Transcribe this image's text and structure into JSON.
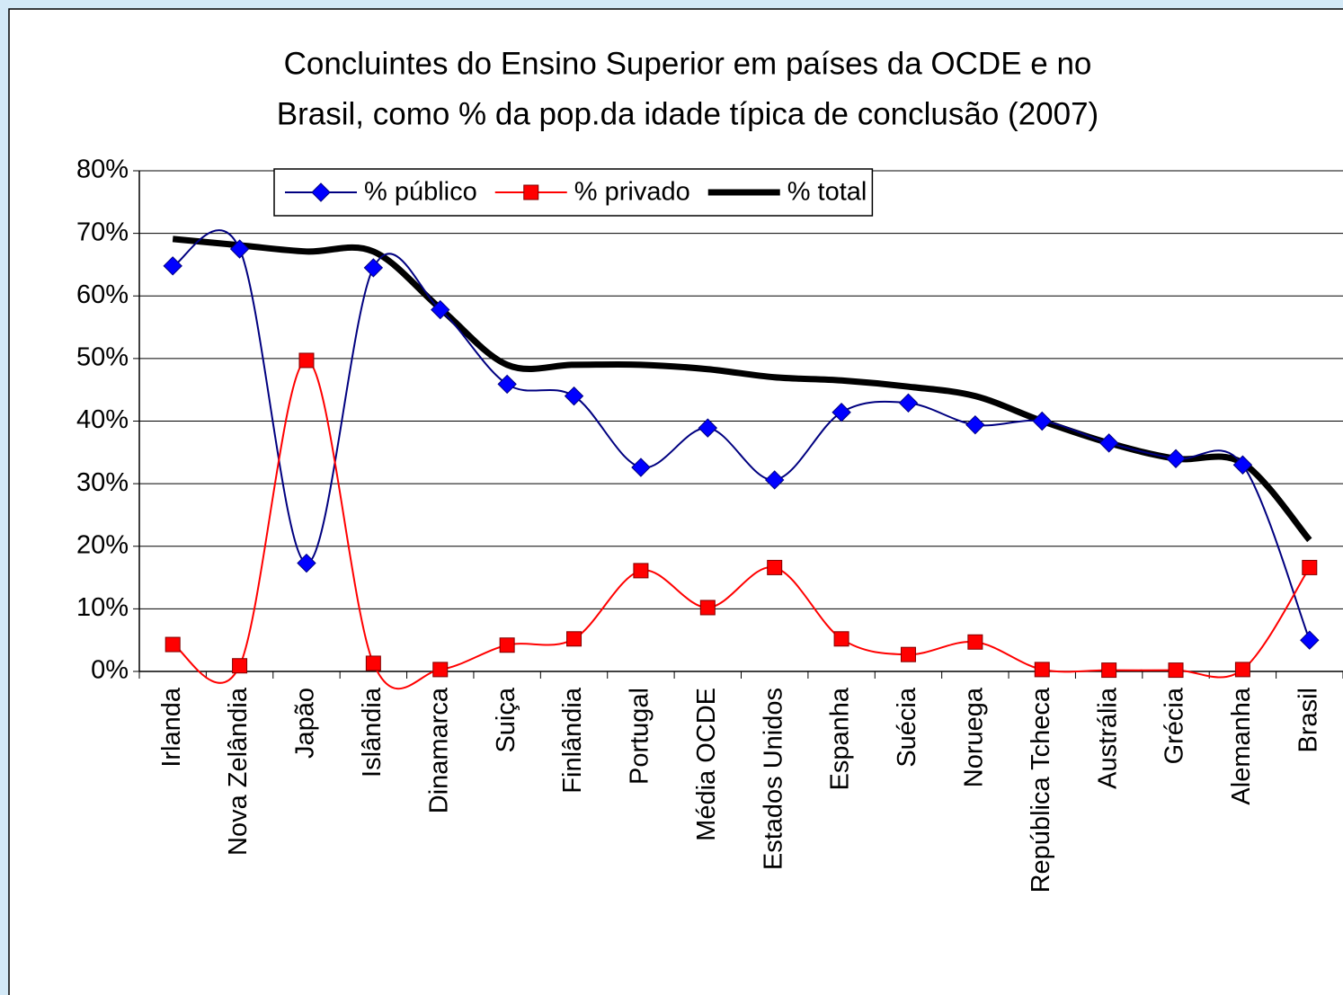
{
  "chart_data": {
    "type": "line",
    "title": [
      "Concluintes do Ensino Superior em países da OCDE e no",
      "Brasil, como % da pop.da idade típica de conclusão (2007)"
    ],
    "categories": [
      "Irlanda",
      "Nova Zelândia",
      "Japão",
      "Islândia",
      "Dinamarca",
      "Suiça",
      "Finlândia",
      "Portugal",
      "Média OCDE",
      "Estados Unidos",
      "Espanha",
      "Suécia",
      "Noruega",
      "República Tcheca",
      "Austrália",
      "Grécia",
      "Alemanha",
      "Brasil"
    ],
    "series": [
      {
        "name": "% público",
        "color": "#000080",
        "marker": "diamond",
        "marker_color": "#0000ff",
        "values": [
          64.8,
          67.5,
          17.3,
          64.5,
          57.8,
          45.9,
          44.0,
          32.6,
          38.9,
          30.6,
          41.4,
          42.9,
          39.4,
          40.0,
          36.5,
          34.0,
          33.0,
          5.0
        ]
      },
      {
        "name": "% privado",
        "color": "#ff0000",
        "marker": "square",
        "marker_color": "#ff0000",
        "values": [
          4.3,
          0.9,
          49.7,
          1.3,
          0.3,
          4.2,
          5.2,
          16.1,
          10.2,
          16.6,
          5.2,
          2.7,
          4.7,
          0.3,
          0.2,
          0.2,
          0.3,
          16.6
        ]
      },
      {
        "name": "% total",
        "color": "#000000",
        "marker": "none",
        "marker_color": "#000000",
        "values": [
          69.1,
          68.1,
          67.1,
          67.1,
          58.0,
          49.0,
          49.0,
          49.0,
          48.3,
          47.0,
          46.5,
          45.5,
          44.0,
          40.0,
          36.5,
          34.0,
          33.3,
          21.0
        ]
      }
    ],
    "ylim": [
      0,
      80
    ],
    "yticks": [
      {
        "value": 0,
        "label": "0%"
      },
      {
        "value": 10,
        "label": "10%"
      },
      {
        "value": 20,
        "label": "20%"
      },
      {
        "value": 30,
        "label": "30%"
      },
      {
        "value": 40,
        "label": "40%"
      },
      {
        "value": 50,
        "label": "50%"
      },
      {
        "value": 60,
        "label": "60%"
      },
      {
        "value": 70,
        "label": "70%"
      },
      {
        "value": 80,
        "label": "80%"
      }
    ],
    "grid": true,
    "legend": "top"
  }
}
